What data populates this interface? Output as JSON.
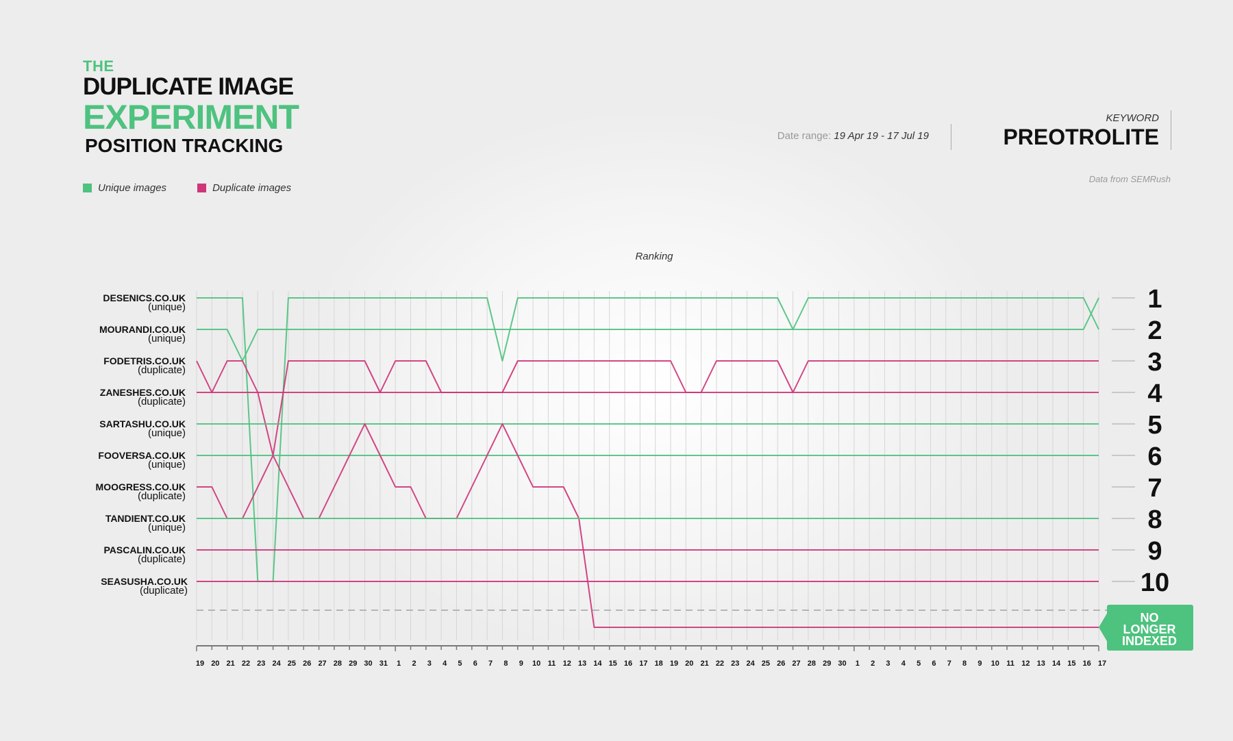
{
  "header": {
    "the": "THE",
    "line1": "DUPLICATE IMAGE",
    "line2": "EXPERIMENT",
    "line3": "POSITION TRACKING"
  },
  "meta": {
    "date_range_label": "Date range:",
    "date_range_value": "19 Apr 19 - 17 Jul 19",
    "keyword_label": "KEYWORD",
    "keyword_value": "PREOTROLITE",
    "source": "Data from SEMRush"
  },
  "legend": {
    "unique": "Unique images",
    "duplicate": "Duplicate images"
  },
  "colors": {
    "unique": "#4ec27f",
    "duplicate": "#cf3579",
    "grid": "#d6d6d6",
    "dashed": "#b5b5b5"
  },
  "chart_data": {
    "type": "line",
    "title": "Ranking",
    "x": [
      "19",
      "20",
      "21",
      "22",
      "23",
      "24",
      "25",
      "26",
      "27",
      "28",
      "29",
      "30",
      "31",
      "1",
      "2",
      "3",
      "4",
      "5",
      "6",
      "7",
      "8",
      "9",
      "10",
      "11",
      "12",
      "13",
      "14",
      "15",
      "16",
      "17",
      "18",
      "19",
      "20",
      "21",
      "22",
      "23",
      "24",
      "25",
      "26",
      "27",
      "28",
      "29",
      "30",
      "1",
      "2",
      "3",
      "4",
      "5",
      "6",
      "7",
      "8",
      "9",
      "10",
      "11",
      "12",
      "13",
      "14",
      "15",
      "16",
      "17"
    ],
    "y_ticks": [
      "1",
      "2",
      "3",
      "4",
      "5",
      "6",
      "7",
      "8",
      "9",
      "10"
    ],
    "ylim": [
      1,
      11
    ],
    "not_indexed_label": "NO LONGER INDEXED",
    "grid": true,
    "series": [
      {
        "name": "DESENICS.CO.UK",
        "tag": "(unique)",
        "group": "unique",
        "values": [
          1,
          1,
          1,
          1,
          10,
          10,
          1,
          1,
          1,
          1,
          1,
          1,
          1,
          1,
          1,
          1,
          1,
          1,
          1,
          1,
          3,
          1,
          1,
          1,
          1,
          1,
          1,
          1,
          1,
          1,
          1,
          1,
          1,
          1,
          1,
          1,
          1,
          1,
          1,
          2,
          1,
          1,
          1,
          1,
          1,
          1,
          1,
          1,
          1,
          1,
          1,
          1,
          1,
          1,
          1,
          1,
          1,
          1,
          1,
          2
        ]
      },
      {
        "name": "MOURANDI.CO.UK",
        "tag": "(unique)",
        "group": "unique",
        "values": [
          2,
          2,
          2,
          3,
          2,
          2,
          2,
          2,
          2,
          2,
          2,
          2,
          2,
          2,
          2,
          2,
          2,
          2,
          2,
          2,
          2,
          2,
          2,
          2,
          2,
          2,
          2,
          2,
          2,
          2,
          2,
          2,
          2,
          2,
          2,
          2,
          2,
          2,
          2,
          2,
          2,
          2,
          2,
          2,
          2,
          2,
          2,
          2,
          2,
          2,
          2,
          2,
          2,
          2,
          2,
          2,
          2,
          2,
          2,
          1
        ]
      },
      {
        "name": "FODETRIS.CO.UK",
        "tag": "(duplicate)",
        "group": "duplicate",
        "values": [
          3,
          4,
          3,
          3,
          4,
          6,
          3,
          3,
          3,
          3,
          3,
          3,
          4,
          3,
          3,
          3,
          4,
          4,
          4,
          4,
          4,
          3,
          3,
          3,
          3,
          3,
          3,
          3,
          3,
          3,
          3,
          3,
          4,
          4,
          3,
          3,
          3,
          3,
          3,
          4,
          3,
          3,
          3,
          3,
          3,
          3,
          3,
          3,
          3,
          3,
          3,
          3,
          3,
          3,
          3,
          3,
          3,
          3,
          3,
          3
        ]
      },
      {
        "name": "ZANESHES.CO.UK",
        "tag": "(duplicate)",
        "group": "duplicate",
        "values": [
          4,
          4,
          4,
          4,
          4,
          4,
          4,
          4,
          4,
          4,
          4,
          4,
          4,
          4,
          4,
          4,
          4,
          4,
          4,
          4,
          4,
          4,
          4,
          4,
          4,
          4,
          4,
          4,
          4,
          4,
          4,
          4,
          4,
          4,
          4,
          4,
          4,
          4,
          4,
          4,
          4,
          4,
          4,
          4,
          4,
          4,
          4,
          4,
          4,
          4,
          4,
          4,
          4,
          4,
          4,
          4,
          4,
          4,
          4,
          4
        ]
      },
      {
        "name": "SARTASHU.CO.UK",
        "tag": "(unique)",
        "group": "unique",
        "values": [
          5,
          5,
          5,
          5,
          5,
          5,
          5,
          5,
          5,
          5,
          5,
          5,
          5,
          5,
          5,
          5,
          5,
          5,
          5,
          5,
          5,
          5,
          5,
          5,
          5,
          5,
          5,
          5,
          5,
          5,
          5,
          5,
          5,
          5,
          5,
          5,
          5,
          5,
          5,
          5,
          5,
          5,
          5,
          5,
          5,
          5,
          5,
          5,
          5,
          5,
          5,
          5,
          5,
          5,
          5,
          5,
          5,
          5,
          5,
          5
        ]
      },
      {
        "name": "FOOVERSA.CO.UK",
        "tag": "(unique)",
        "group": "unique",
        "values": [
          6,
          6,
          6,
          6,
          6,
          6,
          6,
          6,
          6,
          6,
          6,
          6,
          6,
          6,
          6,
          6,
          6,
          6,
          6,
          6,
          6,
          6,
          6,
          6,
          6,
          6,
          6,
          6,
          6,
          6,
          6,
          6,
          6,
          6,
          6,
          6,
          6,
          6,
          6,
          6,
          6,
          6,
          6,
          6,
          6,
          6,
          6,
          6,
          6,
          6,
          6,
          6,
          6,
          6,
          6,
          6,
          6,
          6,
          6,
          6
        ]
      },
      {
        "name": "MOOGRESS.CO.UK",
        "tag": "(duplicate)",
        "group": "duplicate",
        "values": [
          7,
          7,
          8,
          8,
          7,
          6,
          7,
          8,
          8,
          7,
          6,
          5,
          6,
          7,
          7,
          8,
          8,
          8,
          7,
          6,
          5,
          6,
          7,
          7,
          7,
          8,
          11,
          11,
          11,
          11,
          11,
          11,
          11,
          11,
          11,
          11,
          11,
          11,
          11,
          11,
          11,
          11,
          11,
          11,
          11,
          11,
          11,
          11,
          11,
          11,
          11,
          11,
          11,
          11,
          11,
          11,
          11,
          11,
          11,
          11
        ]
      },
      {
        "name": "TANDIENT.CO.UK",
        "tag": "(unique)",
        "group": "unique",
        "values": [
          8,
          8,
          8,
          8,
          8,
          8,
          8,
          8,
          8,
          8,
          8,
          8,
          8,
          8,
          8,
          8,
          8,
          8,
          8,
          8,
          8,
          8,
          8,
          8,
          8,
          8,
          8,
          8,
          8,
          8,
          8,
          8,
          8,
          8,
          8,
          8,
          8,
          8,
          8,
          8,
          8,
          8,
          8,
          8,
          8,
          8,
          8,
          8,
          8,
          8,
          8,
          8,
          8,
          8,
          8,
          8,
          8,
          8,
          8,
          8
        ]
      },
      {
        "name": "PASCALIN.CO.UK",
        "tag": "(duplicate)",
        "group": "duplicate",
        "values": [
          9,
          9,
          9,
          9,
          9,
          9,
          9,
          9,
          9,
          9,
          9,
          9,
          9,
          9,
          9,
          9,
          9,
          9,
          9,
          9,
          9,
          9,
          9,
          9,
          9,
          9,
          9,
          9,
          9,
          9,
          9,
          9,
          9,
          9,
          9,
          9,
          9,
          9,
          9,
          9,
          9,
          9,
          9,
          9,
          9,
          9,
          9,
          9,
          9,
          9,
          9,
          9,
          9,
          9,
          9,
          9,
          9,
          9,
          9,
          9
        ]
      },
      {
        "name": "SEASUSHA.CO.UK",
        "tag": "(duplicate)",
        "group": "duplicate",
        "values": [
          10,
          10,
          10,
          10,
          10,
          10,
          10,
          10,
          10,
          10,
          10,
          10,
          10,
          10,
          10,
          10,
          10,
          10,
          10,
          10,
          10,
          10,
          10,
          10,
          10,
          10,
          10,
          10,
          10,
          10,
          10,
          10,
          10,
          10,
          10,
          10,
          10,
          10,
          10,
          10,
          10,
          10,
          10,
          10,
          10,
          10,
          10,
          10,
          10,
          10,
          10,
          10,
          10,
          10,
          10,
          10,
          10,
          10,
          10,
          10
        ]
      }
    ]
  }
}
